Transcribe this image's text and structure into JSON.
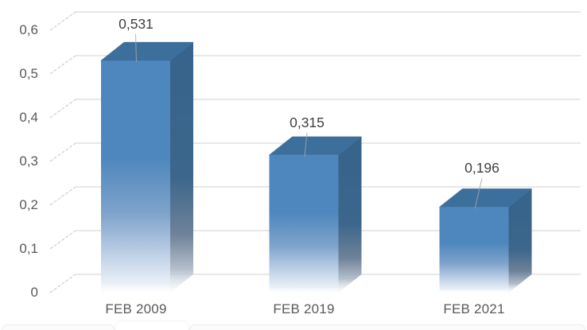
{
  "chart_data": {
    "type": "bar",
    "style": "3d-column",
    "title": "",
    "xlabel": "",
    "ylabel": "",
    "legend": false,
    "grid": "horizontal",
    "number_format": "decimal-comma",
    "categories": [
      "FEB 2009",
      "FEB 2019",
      "FEB 2021"
    ],
    "values": [
      0.531,
      0.315,
      0.196
    ],
    "value_labels": [
      "0,531",
      "0,315",
      "0,196"
    ],
    "y_axis": {
      "min": 0,
      "max": 0.6,
      "step": 0.1,
      "tick_values": [
        0,
        0.1,
        0.2,
        0.3,
        0.4,
        0.5,
        0.6
      ],
      "tick_labels": [
        "0",
        "0,1",
        "0,2",
        "0,3",
        "0,4",
        "0,5",
        "0,6"
      ]
    },
    "colors": {
      "bar_front": "#4E87BD",
      "bar_top": "#3D6F9C",
      "bar_side": "#37648C",
      "gridline": "#D9D9D9",
      "depth_tick": "#C9C9C9",
      "leader_line": "#A8A8A8",
      "axis_text": "#595959",
      "value_text": "#3F3F3F",
      "background": "#FFFFFF"
    }
  }
}
